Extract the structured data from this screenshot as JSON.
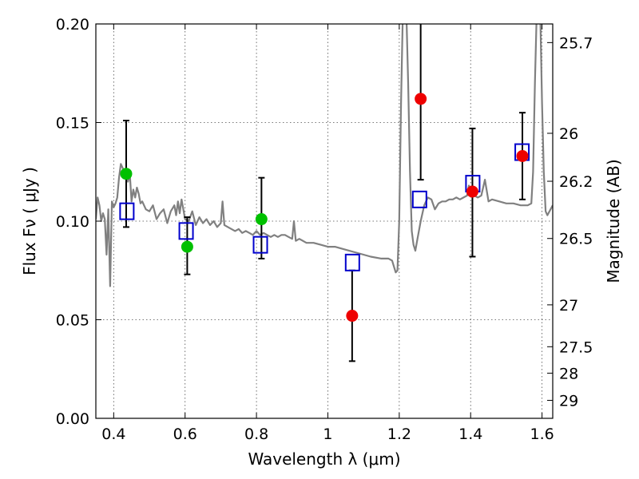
{
  "chart_data": {
    "type": "scatter",
    "title": "",
    "xlabel": "Wavelength  λ (μm)",
    "ylabel": "Flux  Fν  ( μJy )",
    "ylabel_right": "Magnitude (AB)",
    "xlim": [
      0.35,
      1.63
    ],
    "ylim": [
      0.0,
      0.2
    ],
    "grid": true,
    "x_ticks": [
      0.4,
      0.6,
      0.8,
      1.0,
      1.2,
      1.4,
      1.6
    ],
    "x_tick_labels": [
      "0.4",
      "0.6",
      "0.8",
      "1",
      "1.2",
      "1.4",
      "1.6"
    ],
    "y_ticks": [
      0.0,
      0.05,
      0.1,
      0.15,
      0.2
    ],
    "y_tick_labels": [
      "0.00",
      "0.05",
      "0.10",
      "0.15",
      "0.20"
    ],
    "right_ticks": [
      {
        "mag": 25.7,
        "label": "25.7"
      },
      {
        "mag": 26,
        "label": "26"
      },
      {
        "mag": 26.2,
        "label": "26.2"
      },
      {
        "mag": 26.5,
        "label": "26.5"
      },
      {
        "mag": 27,
        "label": "27"
      },
      {
        "mag": 27.5,
        "label": "27.5"
      },
      {
        "mag": 28,
        "label": "28"
      },
      {
        "mag": 29,
        "label": "29"
      }
    ],
    "colors": {
      "model": "#808080",
      "model_points": "#0000cc",
      "optical_obs": "#00c000",
      "nir_obs": "#ee0000",
      "errorbar": "#000000"
    },
    "model_sed": [
      [
        0.35,
        0.101
      ],
      [
        0.355,
        0.112
      ],
      [
        0.36,
        0.108
      ],
      [
        0.365,
        0.1
      ],
      [
        0.37,
        0.104
      ],
      [
        0.375,
        0.101
      ],
      [
        0.38,
        0.083
      ],
      [
        0.385,
        0.106
      ],
      [
        0.39,
        0.067
      ],
      [
        0.395,
        0.11
      ],
      [
        0.4,
        0.107
      ],
      [
        0.405,
        0.109
      ],
      [
        0.41,
        0.112
      ],
      [
        0.415,
        0.122
      ],
      [
        0.42,
        0.129
      ],
      [
        0.425,
        0.127
      ],
      [
        0.43,
        0.125
      ],
      [
        0.435,
        0.123
      ],
      [
        0.44,
        0.12
      ],
      [
        0.445,
        0.124
      ],
      [
        0.45,
        0.11
      ],
      [
        0.455,
        0.116
      ],
      [
        0.46,
        0.112
      ],
      [
        0.465,
        0.117
      ],
      [
        0.47,
        0.114
      ],
      [
        0.475,
        0.109
      ],
      [
        0.48,
        0.11
      ],
      [
        0.49,
        0.106
      ],
      [
        0.5,
        0.105
      ],
      [
        0.51,
        0.108
      ],
      [
        0.52,
        0.101
      ],
      [
        0.53,
        0.104
      ],
      [
        0.54,
        0.106
      ],
      [
        0.55,
        0.099
      ],
      [
        0.56,
        0.105
      ],
      [
        0.57,
        0.108
      ],
      [
        0.575,
        0.103
      ],
      [
        0.58,
        0.11
      ],
      [
        0.585,
        0.104
      ],
      [
        0.59,
        0.111
      ],
      [
        0.6,
        0.101
      ],
      [
        0.61,
        0.1
      ],
      [
        0.62,
        0.105
      ],
      [
        0.63,
        0.098
      ],
      [
        0.64,
        0.102
      ],
      [
        0.65,
        0.099
      ],
      [
        0.66,
        0.101
      ],
      [
        0.67,
        0.098
      ],
      [
        0.68,
        0.1
      ],
      [
        0.69,
        0.097
      ],
      [
        0.7,
        0.099
      ],
      [
        0.705,
        0.11
      ],
      [
        0.71,
        0.098
      ],
      [
        0.72,
        0.097
      ],
      [
        0.73,
        0.096
      ],
      [
        0.74,
        0.095
      ],
      [
        0.75,
        0.096
      ],
      [
        0.76,
        0.094
      ],
      [
        0.77,
        0.095
      ],
      [
        0.78,
        0.094
      ],
      [
        0.79,
        0.093
      ],
      [
        0.8,
        0.095
      ],
      [
        0.81,
        0.093
      ],
      [
        0.82,
        0.094
      ],
      [
        0.83,
        0.093
      ],
      [
        0.84,
        0.092
      ],
      [
        0.85,
        0.093
      ],
      [
        0.86,
        0.092
      ],
      [
        0.87,
        0.093
      ],
      [
        0.88,
        0.093
      ],
      [
        0.89,
        0.092
      ],
      [
        0.9,
        0.091
      ],
      [
        0.905,
        0.1
      ],
      [
        0.91,
        0.09
      ],
      [
        0.92,
        0.091
      ],
      [
        0.94,
        0.089
      ],
      [
        0.96,
        0.089
      ],
      [
        0.98,
        0.088
      ],
      [
        1.0,
        0.087
      ],
      [
        1.02,
        0.087
      ],
      [
        1.04,
        0.086
      ],
      [
        1.06,
        0.085
      ],
      [
        1.08,
        0.084
      ],
      [
        1.1,
        0.083
      ],
      [
        1.12,
        0.082
      ],
      [
        1.15,
        0.081
      ],
      [
        1.17,
        0.081
      ],
      [
        1.18,
        0.08
      ],
      [
        1.19,
        0.074
      ],
      [
        1.195,
        0.075
      ],
      [
        1.2,
        0.1
      ],
      [
        1.205,
        0.16
      ],
      [
        1.21,
        0.205
      ],
      [
        1.22,
        0.205
      ],
      [
        1.225,
        0.17
      ],
      [
        1.23,
        0.125
      ],
      [
        1.235,
        0.095
      ],
      [
        1.24,
        0.088
      ],
      [
        1.245,
        0.085
      ],
      [
        1.25,
        0.09
      ],
      [
        1.26,
        0.1
      ],
      [
        1.27,
        0.108
      ],
      [
        1.28,
        0.112
      ],
      [
        1.29,
        0.111
      ],
      [
        1.3,
        0.106
      ],
      [
        1.31,
        0.109
      ],
      [
        1.32,
        0.11
      ],
      [
        1.33,
        0.11
      ],
      [
        1.34,
        0.111
      ],
      [
        1.35,
        0.111
      ],
      [
        1.36,
        0.112
      ],
      [
        1.37,
        0.111
      ],
      [
        1.38,
        0.112
      ],
      [
        1.39,
        0.113
      ],
      [
        1.395,
        0.118
      ],
      [
        1.4,
        0.115
      ],
      [
        1.41,
        0.113
      ],
      [
        1.42,
        0.112
      ],
      [
        1.43,
        0.113
      ],
      [
        1.44,
        0.121
      ],
      [
        1.45,
        0.11
      ],
      [
        1.46,
        0.111
      ],
      [
        1.48,
        0.11
      ],
      [
        1.5,
        0.109
      ],
      [
        1.52,
        0.109
      ],
      [
        1.54,
        0.108
      ],
      [
        1.56,
        0.108
      ],
      [
        1.57,
        0.109
      ],
      [
        1.575,
        0.125
      ],
      [
        1.58,
        0.17
      ],
      [
        1.585,
        0.205
      ],
      [
        1.595,
        0.205
      ],
      [
        1.6,
        0.16
      ],
      [
        1.605,
        0.125
      ],
      [
        1.61,
        0.105
      ],
      [
        1.615,
        0.103
      ],
      [
        1.63,
        0.108
      ]
    ],
    "series": [
      {
        "name": "optical_obs",
        "marker": "circle",
        "points": [
          {
            "x": 0.435,
            "y": 0.124,
            "err_low": 0.097,
            "err_high": 0.151
          },
          {
            "x": 0.606,
            "y": 0.087,
            "err_low": 0.073,
            "err_high": 0.102
          },
          {
            "x": 0.814,
            "y": 0.101,
            "err_low": 0.081,
            "err_high": 0.122
          }
        ]
      },
      {
        "name": "nir_obs",
        "marker": "circle",
        "points": [
          {
            "x": 1.068,
            "y": 0.052,
            "err_low": 0.029,
            "err_high": 0.075
          },
          {
            "x": 1.26,
            "y": 0.162,
            "err_low": 0.121,
            "err_high": 0.205
          },
          {
            "x": 1.405,
            "y": 0.115,
            "err_low": 0.082,
            "err_high": 0.147
          },
          {
            "x": 1.545,
            "y": 0.133,
            "err_low": 0.111,
            "err_high": 0.155
          }
        ]
      },
      {
        "name": "model_points",
        "marker": "square",
        "points": [
          {
            "x": 0.437,
            "y": 0.105
          },
          {
            "x": 0.603,
            "y": 0.095
          },
          {
            "x": 0.811,
            "y": 0.088
          },
          {
            "x": 1.069,
            "y": 0.079
          },
          {
            "x": 1.257,
            "y": 0.111
          },
          {
            "x": 1.406,
            "y": 0.119
          },
          {
            "x": 1.544,
            "y": 0.135
          }
        ]
      }
    ]
  }
}
